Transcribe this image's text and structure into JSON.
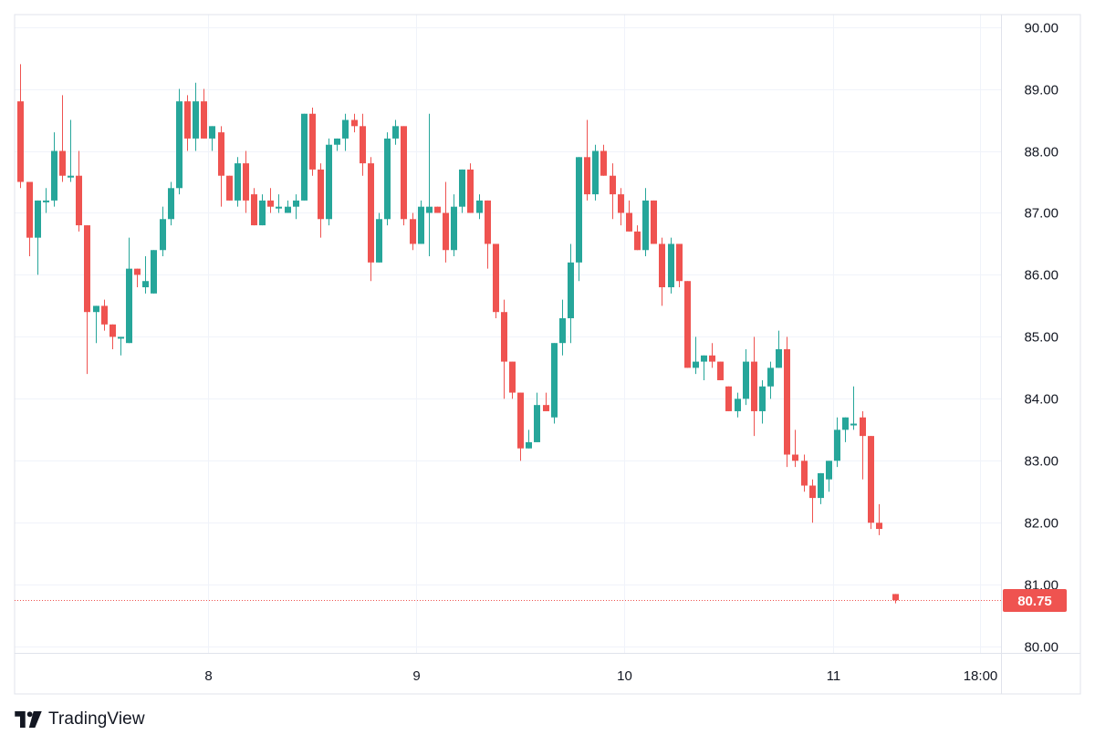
{
  "brand": {
    "name": "TradingView",
    "logo_icon": "tradingview-logo-icon"
  },
  "colors": {
    "up": "#26a69a",
    "down": "#ef5350",
    "grid": "#f0f3fa",
    "text": "#131722",
    "last_price": "#ef5350"
  },
  "chart_data": {
    "type": "candlestick",
    "title": "",
    "xlabel": "",
    "ylabel": "",
    "ylim": [
      79.9,
      90.2
    ],
    "grid": true,
    "price_axis": "right",
    "y_ticks": [
      "90.00",
      "89.00",
      "88.00",
      "87.00",
      "86.00",
      "85.00",
      "84.00",
      "83.00",
      "82.00",
      "81.00",
      "80.00"
    ],
    "x_ticks": [
      {
        "label": "8",
        "index": 22.5
      },
      {
        "label": "9",
        "index": 47.5
      },
      {
        "label": "10",
        "index": 72.5
      },
      {
        "label": "11",
        "index": 97.5
      },
      {
        "label": "18:00",
        "index": 115.2
      }
    ],
    "index_range": [
      -0.7,
      117.7
    ],
    "candles": [
      [
        88.8,
        89.4,
        87.4,
        87.5
      ],
      [
        87.5,
        87.5,
        86.3,
        86.6
      ],
      [
        86.6,
        87.2,
        86.0,
        87.2
      ],
      [
        87.2,
        87.4,
        87.0,
        87.2
      ],
      [
        87.2,
        88.3,
        87.1,
        88.0
      ],
      [
        88.0,
        88.9,
        87.5,
        87.6
      ],
      [
        87.6,
        88.5,
        87.5,
        87.6
      ],
      [
        87.6,
        88.0,
        86.7,
        86.8
      ],
      [
        86.8,
        86.8,
        84.4,
        85.4
      ],
      [
        85.4,
        85.5,
        84.9,
        85.5
      ],
      [
        85.5,
        85.6,
        85.1,
        85.2
      ],
      [
        85.2,
        85.2,
        84.8,
        85.0
      ],
      [
        85.0,
        85.0,
        84.7,
        85.0
      ],
      [
        84.9,
        86.6,
        84.9,
        86.1
      ],
      [
        86.1,
        86.1,
        85.8,
        86.0
      ],
      [
        85.8,
        86.3,
        85.7,
        85.9
      ],
      [
        85.7,
        86.4,
        85.7,
        86.4
      ],
      [
        86.4,
        87.1,
        86.3,
        86.9
      ],
      [
        86.9,
        87.5,
        86.8,
        87.4
      ],
      [
        87.4,
        89.0,
        87.3,
        88.8
      ],
      [
        88.8,
        88.9,
        88.0,
        88.2
      ],
      [
        88.2,
        89.1,
        88.0,
        88.8
      ],
      [
        88.8,
        89.0,
        88.2,
        88.2
      ],
      [
        88.2,
        88.4,
        88.0,
        88.4
      ],
      [
        88.3,
        88.4,
        87.1,
        87.6
      ],
      [
        87.6,
        87.6,
        87.2,
        87.2
      ],
      [
        87.2,
        87.9,
        87.1,
        87.8
      ],
      [
        87.8,
        88.0,
        87.0,
        87.2
      ],
      [
        87.3,
        87.4,
        86.8,
        86.8
      ],
      [
        86.8,
        87.3,
        86.8,
        87.2
      ],
      [
        87.2,
        87.4,
        87.0,
        87.1
      ],
      [
        87.1,
        87.3,
        87.0,
        87.1
      ],
      [
        87.0,
        87.2,
        87.0,
        87.1
      ],
      [
        87.1,
        87.3,
        86.9,
        87.2
      ],
      [
        87.2,
        88.6,
        87.2,
        88.6
      ],
      [
        88.6,
        88.7,
        87.6,
        87.7
      ],
      [
        87.7,
        87.8,
        86.6,
        86.9
      ],
      [
        86.9,
        88.2,
        86.8,
        88.1
      ],
      [
        88.1,
        88.2,
        88.0,
        88.2
      ],
      [
        88.2,
        88.6,
        88.0,
        88.5
      ],
      [
        88.5,
        88.6,
        88.3,
        88.4
      ],
      [
        88.4,
        88.6,
        87.6,
        87.8
      ],
      [
        87.8,
        87.9,
        85.9,
        86.2
      ],
      [
        86.2,
        87.0,
        86.2,
        86.9
      ],
      [
        86.9,
        88.3,
        86.8,
        88.2
      ],
      [
        88.2,
        88.5,
        88.1,
        88.4
      ],
      [
        88.4,
        88.4,
        86.8,
        86.9
      ],
      [
        86.9,
        87.0,
        86.4,
        86.5
      ],
      [
        86.5,
        87.2,
        86.5,
        87.1
      ],
      [
        87.0,
        88.6,
        86.3,
        87.1
      ],
      [
        87.1,
        87.1,
        87.0,
        87.0
      ],
      [
        87.0,
        87.5,
        86.2,
        86.4
      ],
      [
        86.4,
        87.3,
        86.3,
        87.1
      ],
      [
        87.1,
        87.7,
        87.0,
        87.7
      ],
      [
        87.7,
        87.8,
        87.0,
        87.0
      ],
      [
        87.0,
        87.3,
        86.9,
        87.2
      ],
      [
        87.2,
        87.2,
        86.1,
        86.5
      ],
      [
        86.5,
        86.5,
        85.3,
        85.4
      ],
      [
        85.4,
        85.6,
        84.0,
        84.6
      ],
      [
        84.6,
        84.6,
        84.0,
        84.1
      ],
      [
        84.1,
        84.1,
        83.0,
        83.2
      ],
      [
        83.2,
        83.5,
        83.2,
        83.3
      ],
      [
        83.3,
        84.1,
        83.3,
        83.9
      ],
      [
        83.9,
        84.1,
        83.8,
        83.8
      ],
      [
        83.7,
        84.9,
        83.6,
        84.9
      ],
      [
        84.9,
        85.6,
        84.7,
        85.3
      ],
      [
        85.3,
        86.5,
        84.9,
        86.2
      ],
      [
        86.2,
        87.9,
        85.9,
        87.9
      ],
      [
        87.9,
        88.5,
        87.2,
        87.3
      ],
      [
        87.3,
        88.1,
        87.2,
        88.0
      ],
      [
        88.0,
        88.1,
        87.6,
        87.6
      ],
      [
        87.6,
        87.8,
        86.9,
        87.3
      ],
      [
        87.3,
        87.4,
        86.8,
        87.0
      ],
      [
        87.0,
        87.2,
        86.7,
        86.7
      ],
      [
        86.7,
        86.8,
        86.4,
        86.4
      ],
      [
        86.4,
        87.4,
        86.3,
        87.2
      ],
      [
        87.2,
        87.2,
        86.5,
        86.5
      ],
      [
        86.5,
        86.6,
        85.5,
        85.8
      ],
      [
        85.8,
        86.6,
        85.7,
        86.5
      ],
      [
        86.5,
        86.5,
        85.8,
        85.9
      ],
      [
        85.9,
        85.9,
        84.5,
        84.5
      ],
      [
        84.5,
        85.0,
        84.4,
        84.6
      ],
      [
        84.6,
        84.7,
        84.3,
        84.7
      ],
      [
        84.7,
        84.9,
        84.5,
        84.6
      ],
      [
        84.6,
        84.6,
        84.3,
        84.3
      ],
      [
        84.2,
        84.2,
        83.8,
        83.8
      ],
      [
        83.8,
        84.1,
        83.7,
        84.0
      ],
      [
        84.0,
        84.8,
        83.9,
        84.6
      ],
      [
        84.6,
        85.0,
        83.4,
        83.8
      ],
      [
        83.8,
        84.3,
        83.6,
        84.2
      ],
      [
        84.2,
        84.6,
        84.0,
        84.5
      ],
      [
        84.5,
        85.1,
        84.5,
        84.8
      ],
      [
        84.8,
        85.0,
        82.9,
        83.1
      ],
      [
        83.1,
        83.5,
        82.9,
        83.0
      ],
      [
        83.0,
        83.1,
        82.5,
        82.6
      ],
      [
        82.6,
        82.7,
        82.0,
        82.4
      ],
      [
        82.4,
        82.8,
        82.3,
        82.8
      ],
      [
        82.7,
        83.0,
        82.5,
        83.0
      ],
      [
        83.0,
        83.7,
        82.9,
        83.5
      ],
      [
        83.5,
        83.7,
        83.3,
        83.7
      ],
      [
        83.6,
        84.2,
        83.5,
        83.6
      ],
      [
        83.7,
        83.8,
        82.7,
        83.4
      ],
      [
        83.4,
        83.4,
        81.9,
        82.0
      ],
      [
        82.0,
        82.3,
        81.8,
        81.9
      ],
      null,
      [
        80.85,
        80.85,
        80.7,
        80.75
      ]
    ],
    "last_price": "80.75",
    "last_price_value": 80.75
  }
}
